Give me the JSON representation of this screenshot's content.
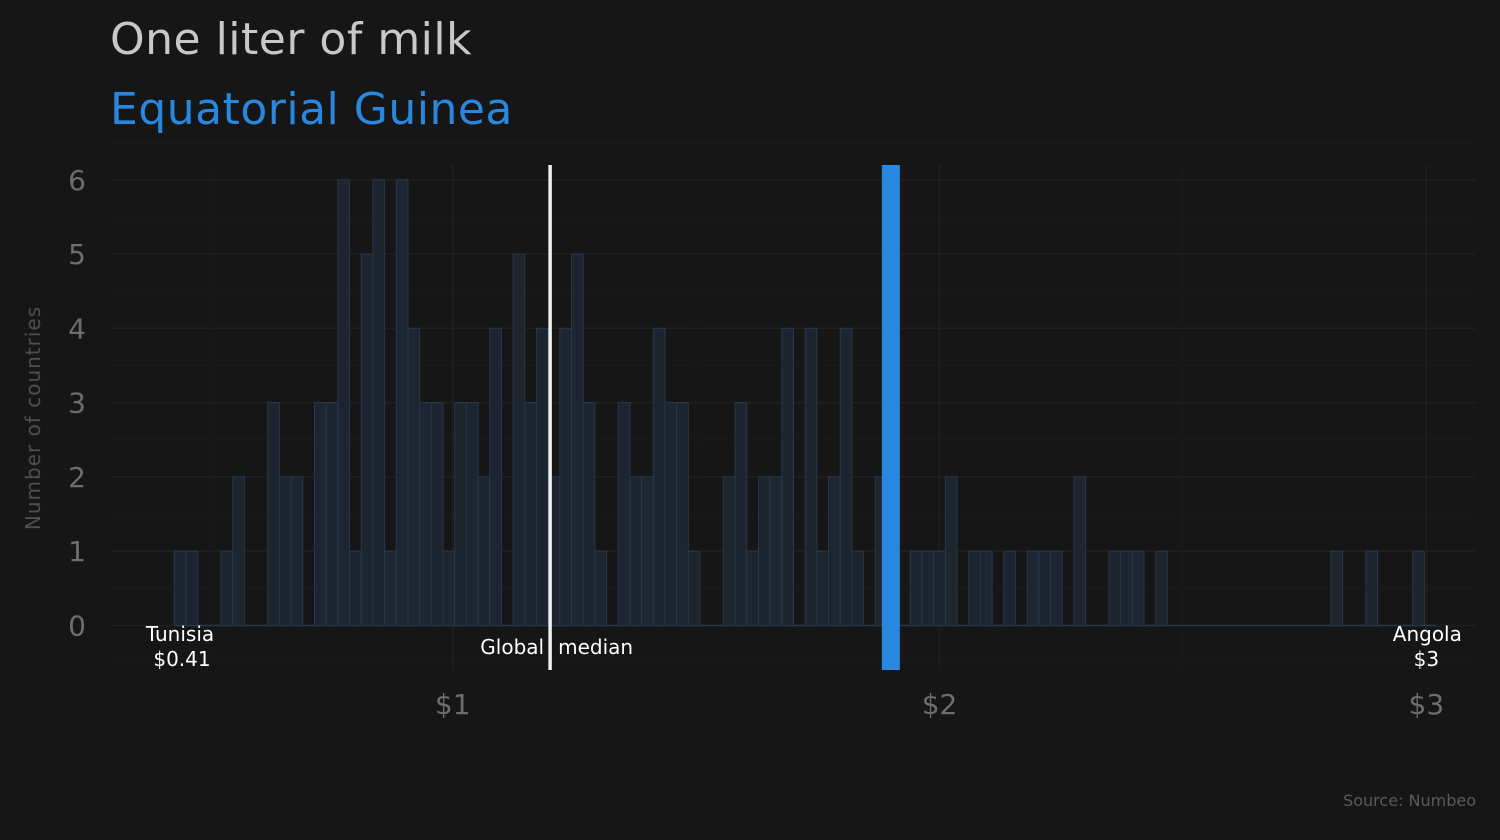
{
  "header": {
    "title": "One liter of milk",
    "subtitle": "Equatorial Guinea"
  },
  "footer": {
    "source": "Source: Numbeo"
  },
  "colors": {
    "background": "#161616",
    "bars": "#1c2530",
    "bar_outline": "#27384a",
    "highlight": "#2887de",
    "median_line": "#f0f0f0"
  },
  "chart_data": {
    "type": "bar",
    "subtype": "histogram",
    "ylabel": "Number of countries",
    "xlabel": "",
    "bin_width": 0.024,
    "x": [
      0.44,
      0.464,
      0.488,
      0.512,
      0.536,
      0.56,
      0.584,
      0.608,
      0.632,
      0.656,
      0.68,
      0.704,
      0.728,
      0.752,
      0.776,
      0.8,
      0.824,
      0.848,
      0.872,
      0.896,
      0.92,
      0.944,
      0.968,
      0.992,
      1.016,
      1.04,
      1.064,
      1.088,
      1.112,
      1.136,
      1.16,
      1.184,
      1.208,
      1.232,
      1.256,
      1.28,
      1.304,
      1.328,
      1.352,
      1.376,
      1.4,
      1.424,
      1.448,
      1.472,
      1.496,
      1.52,
      1.544,
      1.568,
      1.592,
      1.616,
      1.64,
      1.664,
      1.688,
      1.712,
      1.736,
      1.76,
      1.784,
      1.808,
      1.832,
      1.856,
      1.88,
      1.904,
      1.928,
      1.952,
      1.976,
      2.0,
      2.024,
      2.048,
      2.072,
      2.096,
      2.12,
      2.144,
      2.168,
      2.192,
      2.216,
      2.24,
      2.264,
      2.288,
      2.312,
      2.336,
      2.36,
      2.384,
      2.408,
      2.432,
      2.456,
      2.48,
      2.504,
      2.528,
      2.552,
      2.576,
      2.6,
      2.624,
      2.648,
      2.672,
      2.696,
      2.72,
      2.744,
      2.768,
      2.792,
      2.816,
      2.84,
      2.864,
      2.888,
      2.912,
      2.936,
      2.96,
      2.984,
      3.008
    ],
    "y": [
      1,
      1,
      0,
      0,
      1,
      2,
      0,
      0,
      3,
      2,
      2,
      0,
      3,
      3,
      6,
      1,
      5,
      6,
      1,
      6,
      4,
      3,
      3,
      1,
      3,
      3,
      2,
      4,
      0,
      5,
      3,
      4,
      2,
      4,
      5,
      3,
      1,
      0,
      3,
      2,
      2,
      4,
      3,
      3,
      1,
      0,
      0,
      2,
      3,
      1,
      2,
      2,
      4,
      0,
      4,
      1,
      2,
      4,
      1,
      0,
      2,
      0,
      0,
      1,
      1,
      1,
      2,
      0,
      1,
      1,
      0,
      1,
      0,
      1,
      1,
      1,
      0,
      2,
      0,
      0,
      1,
      1,
      1,
      0,
      1,
      0,
      0,
      0,
      0,
      0,
      0,
      0,
      0,
      0,
      0,
      0,
      0,
      0,
      0,
      1,
      0,
      0,
      1,
      0,
      0,
      0,
      1,
      0
    ],
    "x_ticks": [
      1,
      2,
      3
    ],
    "x_tick_labels": [
      "$1",
      "$2",
      "$3"
    ],
    "y_ticks": [
      0,
      1,
      2,
      3,
      4,
      5,
      6
    ],
    "xlim": [
      0.3,
      3.1
    ],
    "ylim": [
      -0.6,
      6.2
    ],
    "grid": true,
    "median": {
      "value": 1.2,
      "label_left": "Global",
      "label_right": "median"
    },
    "highlight": {
      "value": 1.9
    },
    "min": {
      "country": "Tunisia",
      "value": 0.41,
      "label": "$0.41"
    },
    "max": {
      "country": "Angola",
      "value": 3.0,
      "label": "$3"
    }
  }
}
